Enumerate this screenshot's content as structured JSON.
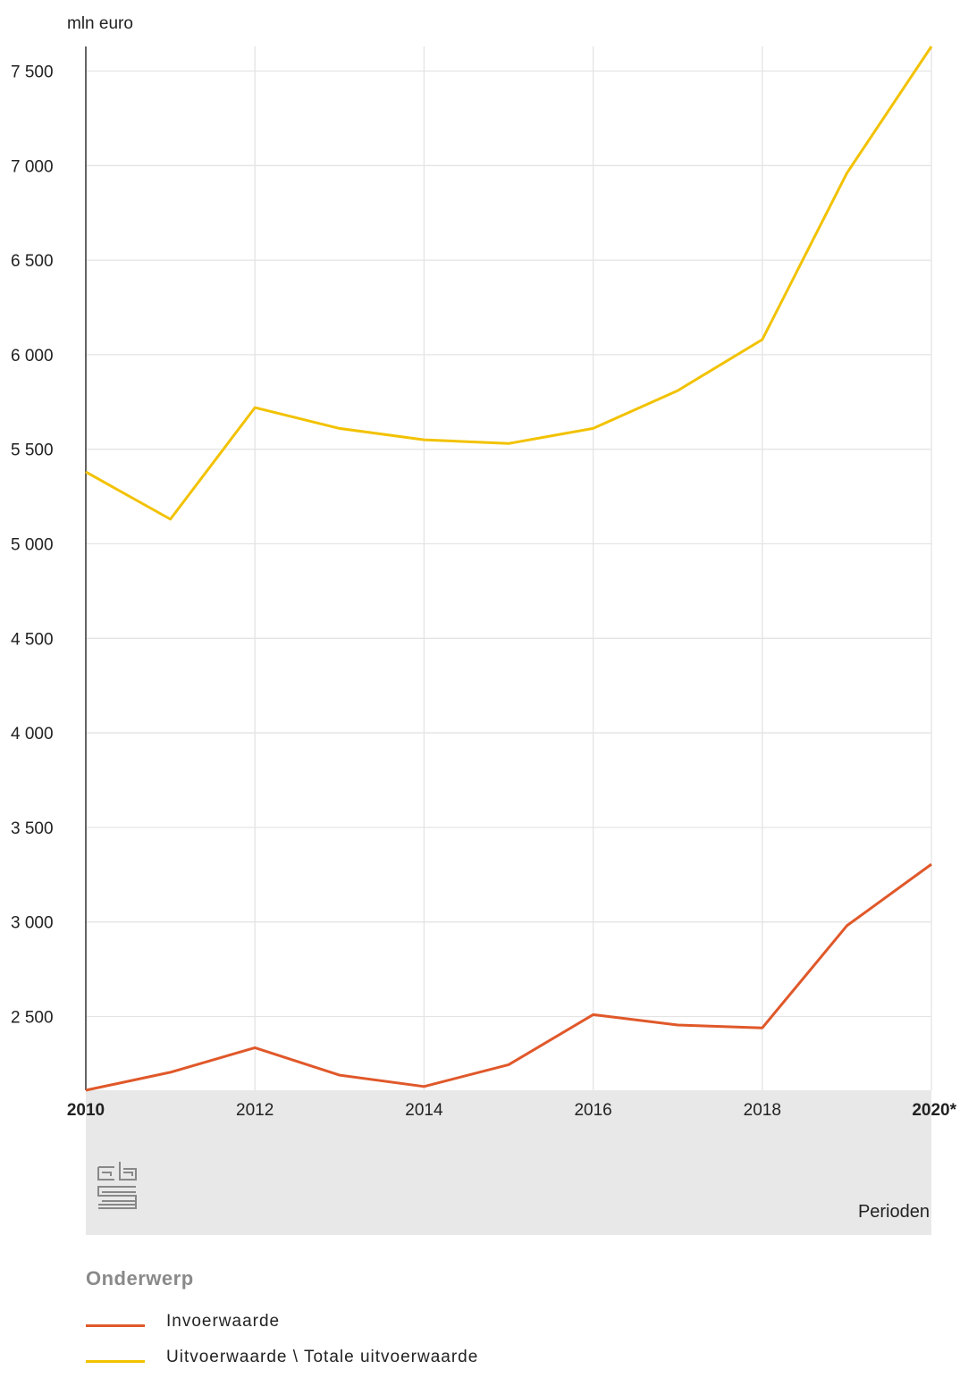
{
  "chart_data": {
    "type": "line",
    "unit_label": "mln euro",
    "x": [
      "2010",
      "2011",
      "2012",
      "2013",
      "2014",
      "2015",
      "2016",
      "2017",
      "2018",
      "2019",
      "2020*"
    ],
    "x_tick_labels": [
      "2010",
      "2012",
      "2014",
      "2016",
      "2018",
      "2020*"
    ],
    "x_axis_title": "Perioden",
    "y_ticks": [
      "7 500",
      "7 000",
      "6 500",
      "6 000",
      "5 500",
      "5 000",
      "4 500",
      "4 000",
      "3 500",
      "3 000",
      "2 500"
    ],
    "ylim": [
      2110,
      7630
    ],
    "grid": true,
    "legend_position": "bottom",
    "legend_title": "Onderwerp",
    "series": [
      {
        "name": "Invoerwaarde",
        "color": "#e0582a",
        "values": [
          2110,
          2205,
          2335,
          2190,
          2130,
          2245,
          2510,
          2455,
          2440,
          2980,
          3305
        ]
      },
      {
        "name": "Uitvoerwaarde \\ Totale uitvoerwaarde",
        "color": "#f2c200",
        "values": [
          5380,
          5130,
          5720,
          5610,
          5550,
          5530,
          5610,
          5810,
          6080,
          6960,
          7630
        ]
      }
    ]
  }
}
